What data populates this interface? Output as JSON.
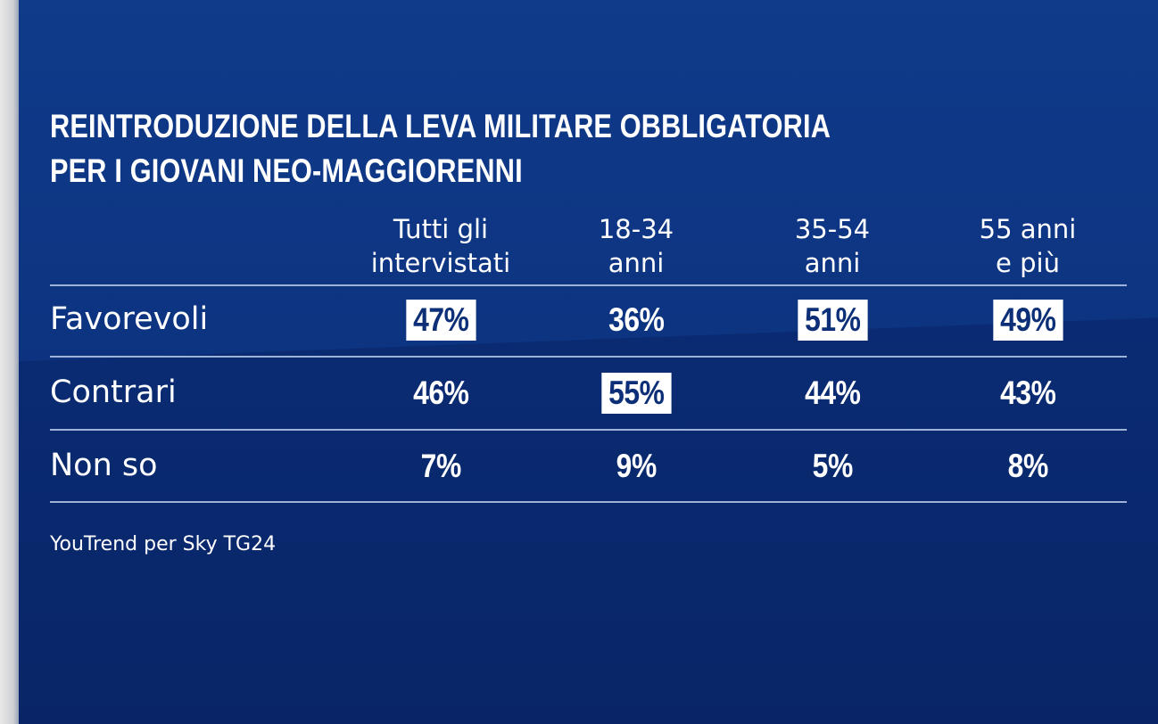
{
  "title_lines": [
    "REINTRODUZIONE DELLA LEVA MILITARE OBBLIGATORIA",
    "PER I GIOVANI NEO-MAGGIORENNI"
  ],
  "columns": [
    {
      "line1": "Tutti gli",
      "line2": "intervistati"
    },
    {
      "line1": "18-34",
      "line2": "anni"
    },
    {
      "line1": "35-54",
      "line2": "anni"
    },
    {
      "line1": "55 anni",
      "line2": "e più"
    }
  ],
  "rows": [
    {
      "label": "Favorevoli",
      "values": [
        "47%",
        "36%",
        "51%",
        "49%"
      ],
      "highlight": [
        true,
        false,
        true,
        true
      ]
    },
    {
      "label": "Contrari",
      "values": [
        "46%",
        "55%",
        "44%",
        "43%"
      ],
      "highlight": [
        false,
        true,
        false,
        false
      ]
    },
    {
      "label": "Non so",
      "values": [
        "7%",
        "9%",
        "5%",
        "8%"
      ],
      "highlight": [
        false,
        false,
        false,
        false
      ]
    }
  ],
  "source": "YouTrend per Sky TG24",
  "colors": {
    "background": "#0d3481",
    "highlight_box": "#ffffff",
    "highlight_text": "#0c2f78",
    "text": "#ffffff"
  },
  "chart_data": {
    "type": "table",
    "title": "REINTRODUZIONE DELLA LEVA MILITARE OBBLIGATORIA PER I GIOVANI NEO-MAGGIORENNI",
    "categories": [
      "Tutti gli intervistati",
      "18-34 anni",
      "35-54 anni",
      "55 anni e più"
    ],
    "series": [
      {
        "name": "Favorevoli",
        "values": [
          47,
          36,
          51,
          49
        ]
      },
      {
        "name": "Contrari",
        "values": [
          46,
          55,
          44,
          43
        ]
      },
      {
        "name": "Non so",
        "values": [
          7,
          9,
          5,
          8
        ]
      }
    ],
    "unit": "%",
    "source": "YouTrend per Sky TG24"
  }
}
